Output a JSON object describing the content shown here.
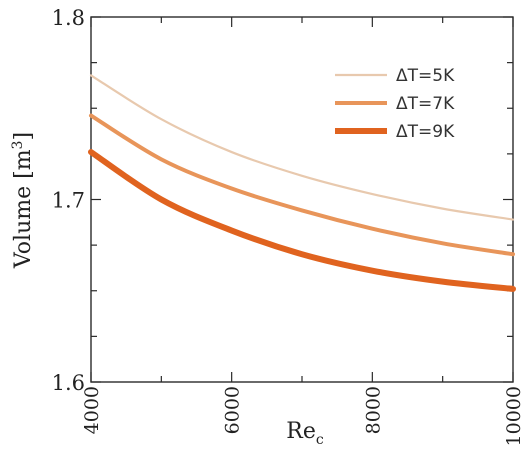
{
  "chart_data": {
    "type": "line",
    "xlabel": "Re",
    "xlabel_sub": "c",
    "ylabel": "Volume [m",
    "ylabel_sup": "3",
    "ylabel_close": "]",
    "xlim": [
      4000,
      10000
    ],
    "ylim": [
      1.6,
      1.8
    ],
    "xticks": [
      4000,
      6000,
      8000,
      10000
    ],
    "xtick_labels": [
      "4000",
      "6000",
      "8000",
      "10000"
    ],
    "yticks": [
      1.6,
      1.7,
      1.8
    ],
    "ytick_labels": [
      "1.6",
      "1.7",
      "1.8"
    ],
    "grid": false,
    "legend_position": "top-right",
    "series": [
      {
        "name": "ΔT=5K",
        "color": "#e8c9ae",
        "x": [
          4000,
          5000,
          6000,
          7000,
          8000,
          9000,
          10000
        ],
        "y": [
          1.768,
          1.744,
          1.726,
          1.713,
          1.703,
          1.695,
          1.689
        ]
      },
      {
        "name": "ΔT=7K",
        "color": "#e8955a",
        "x": [
          4000,
          5000,
          6000,
          7000,
          8000,
          9000,
          10000
        ],
        "y": [
          1.746,
          1.722,
          1.706,
          1.694,
          1.684,
          1.676,
          1.67
        ]
      },
      {
        "name": "ΔT=9K",
        "color": "#e0631f",
        "x": [
          4000,
          5000,
          6000,
          7000,
          8000,
          9000,
          10000
        ],
        "y": [
          1.726,
          1.7,
          1.683,
          1.67,
          1.661,
          1.655,
          1.651
        ]
      }
    ]
  }
}
